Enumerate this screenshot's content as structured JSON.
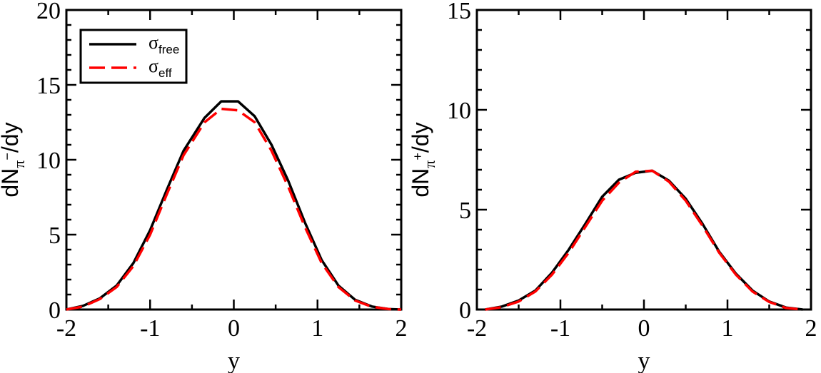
{
  "chart_data": [
    {
      "type": "line",
      "panel": "left",
      "xlabel": "y",
      "ylabel": {
        "base": "dN",
        "symbol": "π",
        "charge": "−",
        "suffix": "/dy"
      },
      "xlim": [
        -2,
        2
      ],
      "ylim": [
        0,
        20
      ],
      "xticks": [
        -2,
        -1,
        0,
        1,
        2
      ],
      "yticks": [
        0,
        5,
        10,
        15,
        20
      ],
      "legend": {
        "placement": "top-left",
        "entries": [
          {
            "symbol": "σ",
            "sub": "free"
          },
          {
            "symbol": "σ",
            "sub": "eff"
          }
        ]
      },
      "series": [
        {
          "name": "σfree",
          "color": "#000000",
          "style": "solid",
          "x": [
            -2.0,
            -1.8,
            -1.6,
            -1.4,
            -1.2,
            -1.0,
            -0.8,
            -0.6,
            -0.35,
            -0.15,
            0.05,
            0.25,
            0.45,
            0.65,
            0.85,
            1.05,
            1.25,
            1.45,
            1.65,
            1.85,
            2.0
          ],
          "y": [
            0.0,
            0.25,
            0.75,
            1.6,
            3.1,
            5.3,
            8.0,
            10.6,
            12.8,
            13.9,
            13.9,
            12.9,
            11.0,
            8.6,
            5.8,
            3.3,
            1.6,
            0.65,
            0.2,
            0.03,
            0.0
          ]
        },
        {
          "name": "σeff",
          "color": "#ff0000",
          "style": "dashed",
          "x": [
            -2.0,
            -1.8,
            -1.6,
            -1.4,
            -1.2,
            -1.0,
            -0.8,
            -0.6,
            -0.35,
            -0.15,
            0.05,
            0.25,
            0.45,
            0.65,
            0.85,
            1.05,
            1.25,
            1.45,
            1.65,
            1.85,
            2.0
          ],
          "y": [
            0.0,
            0.2,
            0.7,
            1.5,
            2.9,
            5.0,
            7.7,
            10.3,
            12.5,
            13.4,
            13.3,
            12.5,
            10.6,
            8.2,
            5.5,
            3.1,
            1.5,
            0.6,
            0.18,
            0.03,
            0.0
          ]
        }
      ]
    },
    {
      "type": "line",
      "panel": "right",
      "xlabel": "y",
      "ylabel": {
        "base": "dN",
        "symbol": "π",
        "charge": "+",
        "suffix": "/dy"
      },
      "xlim": [
        -2,
        2
      ],
      "ylim": [
        0,
        15
      ],
      "xticks": [
        -2,
        -1,
        0,
        1,
        2
      ],
      "yticks": [
        0,
        5,
        10,
        15
      ],
      "series": [
        {
          "name": "σfree",
          "color": "#000000",
          "style": "solid",
          "x": [
            -1.9,
            -1.7,
            -1.5,
            -1.3,
            -1.1,
            -0.9,
            -0.7,
            -0.5,
            -0.3,
            -0.1,
            0.1,
            0.3,
            0.5,
            0.7,
            0.9,
            1.1,
            1.3,
            1.5,
            1.7,
            1.9
          ],
          "y": [
            0.0,
            0.15,
            0.45,
            0.95,
            1.85,
            3.0,
            4.3,
            5.65,
            6.5,
            6.85,
            6.95,
            6.45,
            5.55,
            4.3,
            2.9,
            1.8,
            0.95,
            0.4,
            0.1,
            0.0
          ]
        },
        {
          "name": "σeff",
          "color": "#ff0000",
          "style": "dashed",
          "x": [
            -1.9,
            -1.7,
            -1.5,
            -1.3,
            -1.1,
            -0.9,
            -0.7,
            -0.5,
            -0.3,
            -0.1,
            0.1,
            0.3,
            0.5,
            0.7,
            0.9,
            1.1,
            1.3,
            1.5,
            1.7,
            1.9
          ],
          "y": [
            0.0,
            0.12,
            0.4,
            0.9,
            1.75,
            2.85,
            4.15,
            5.45,
            6.35,
            6.9,
            6.95,
            6.4,
            5.45,
            4.2,
            2.85,
            1.75,
            0.9,
            0.38,
            0.08,
            0.0
          ]
        }
      ]
    }
  ]
}
